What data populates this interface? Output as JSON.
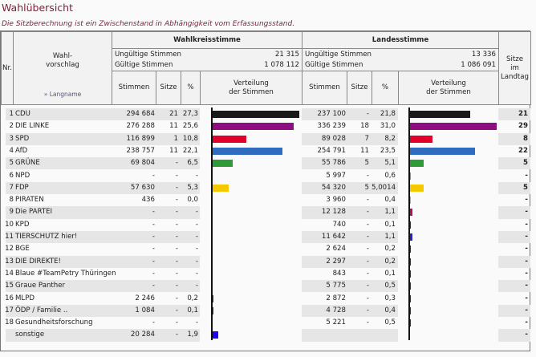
{
  "title": "Wahlübersicht",
  "note": "Die Sitzberechnung ist ein Zwischenstand in Abhängigkeit vom Erfassungsstand.",
  "header": {
    "nr": "Nr.",
    "wahlvorschlag": "Wahl-\nvorschlag",
    "langname_link": "» Langname",
    "wahlkreis": "Wahlkreisstimme",
    "landes": "Landesstimme",
    "sitze_landtag": "Sitze\nim\nLandtag",
    "stimmen": "Stimmen",
    "sitze": "Sitze",
    "pct": "%",
    "verteilung": "Verteilung\nder Stimmen",
    "ungueltig_label": "Ungültige Stimmen",
    "gueltig_label": "Gültige Stimmen",
    "wk_ungueltig": "21 315",
    "wk_gueltig": "1 078 112",
    "ls_ungueltig": "13 336",
    "ls_gueltig": "1 086 091"
  },
  "rows": [
    {
      "nr": "1",
      "name": "CDU",
      "wk_st": "294 684",
      "wk_si": "21",
      "wk_p": "27,3",
      "ls_st": "237 100",
      "ls_si": "-",
      "ls_p": "21,8",
      "lt": "21",
      "color": "#1a1a1a",
      "wk_v": 27.3,
      "ls_v": 21.8
    },
    {
      "nr": "2",
      "name": "DIE LINKE",
      "wk_st": "276 288",
      "wk_si": "11",
      "wk_p": "25,6",
      "ls_st": "336 239",
      "ls_si": "18",
      "ls_p": "31,0",
      "lt": "29",
      "color": "#8e0e82",
      "wk_v": 25.6,
      "ls_v": 31.0
    },
    {
      "nr": "3",
      "name": "SPD",
      "wk_st": "116 899",
      "wk_si": "1",
      "wk_p": "10,8",
      "ls_st": "89 028",
      "ls_si": "7",
      "ls_p": "8,2",
      "lt": "8",
      "color": "#e0002a",
      "wk_v": 10.8,
      "ls_v": 8.2
    },
    {
      "nr": "4",
      "name": "AfD",
      "wk_st": "238 757",
      "wk_si": "11",
      "wk_p": "22,1",
      "ls_st": "254 791",
      "ls_si": "11",
      "ls_p": "23,5",
      "lt": "22",
      "color": "#2f6bbf",
      "wk_v": 22.1,
      "ls_v": 23.5
    },
    {
      "nr": "5",
      "name": "GRÜNE",
      "wk_st": "69 804",
      "wk_si": "-",
      "wk_p": "6,5",
      "ls_st": "55 786",
      "ls_si": "5",
      "ls_p": "5,1",
      "lt": "5",
      "color": "#2e9a3a",
      "wk_v": 6.5,
      "ls_v": 5.1
    },
    {
      "nr": "6",
      "name": "NPD",
      "wk_st": "-",
      "wk_si": "-",
      "wk_p": "-",
      "ls_st": "5 997",
      "ls_si": "-",
      "ls_p": "0,6",
      "lt": "-",
      "color": "#8a8a9a",
      "wk_v": 0,
      "ls_v": 0.6
    },
    {
      "nr": "7",
      "name": "FDP",
      "wk_st": "57 630",
      "wk_si": "-",
      "wk_p": "5,3",
      "ls_st": "54 320",
      "ls_si": "5",
      "ls_p": "5,0014",
      "lt": "5",
      "color": "#f5c800",
      "wk_v": 5.3,
      "ls_v": 5.0
    },
    {
      "nr": "8",
      "name": "PIRATEN",
      "wk_st": "436",
      "wk_si": "-",
      "wk_p": "0,0",
      "ls_st": "3 960",
      "ls_si": "-",
      "ls_p": "0,4",
      "lt": "-",
      "color": "#f5a000",
      "wk_v": 0,
      "ls_v": 0.4
    },
    {
      "nr": "9",
      "name": "Die PARTEI",
      "wk_st": "-",
      "wk_si": "-",
      "wk_p": "-",
      "ls_st": "12 128",
      "ls_si": "-",
      "ls_p": "1,1",
      "lt": "-",
      "color": "#b0105a",
      "wk_v": 0,
      "ls_v": 1.1
    },
    {
      "nr": "10",
      "name": "KPD",
      "wk_st": "-",
      "wk_si": "-",
      "wk_p": "-",
      "ls_st": "740",
      "ls_si": "-",
      "ls_p": "0,1",
      "lt": "-",
      "color": "#2a1fb0",
      "wk_v": 0,
      "ls_v": 0.1
    },
    {
      "nr": "11",
      "name": "TIERSCHUTZ hier!",
      "wk_st": "-",
      "wk_si": "-",
      "wk_p": "-",
      "ls_st": "11 642",
      "ls_si": "-",
      "ls_p": "1,1",
      "lt": "-",
      "color": "#2a1fd0",
      "wk_v": 0,
      "ls_v": 1.1
    },
    {
      "nr": "12",
      "name": "BGE",
      "wk_st": "-",
      "wk_si": "-",
      "wk_p": "-",
      "ls_st": "2 624",
      "ls_si": "-",
      "ls_p": "0,2",
      "lt": "-",
      "color": "#2a1fb0",
      "wk_v": 0,
      "ls_v": 0.2
    },
    {
      "nr": "13",
      "name": "DIE DIREKTE!",
      "wk_st": "-",
      "wk_si": "-",
      "wk_p": "-",
      "ls_st": "2 297",
      "ls_si": "-",
      "ls_p": "0,2",
      "lt": "-",
      "color": "#2a1fb0",
      "wk_v": 0,
      "ls_v": 0.2
    },
    {
      "nr": "14",
      "name": "Blaue #TeamPetry Thüringen",
      "wk_st": "-",
      "wk_si": "-",
      "wk_p": "-",
      "ls_st": "843",
      "ls_si": "-",
      "ls_p": "0,1",
      "lt": "-",
      "color": "#2a1fb0",
      "wk_v": 0,
      "ls_v": 0.1
    },
    {
      "nr": "15",
      "name": "Graue Panther",
      "wk_st": "-",
      "wk_si": "-",
      "wk_p": "-",
      "ls_st": "5 775",
      "ls_si": "-",
      "ls_p": "0,5",
      "lt": "-",
      "color": "#2a1fd0",
      "wk_v": 0,
      "ls_v": 0.5
    },
    {
      "nr": "16",
      "name": "MLPD",
      "wk_st": "2 246",
      "wk_si": "-",
      "wk_p": "0,2",
      "ls_st": "2 872",
      "ls_si": "-",
      "ls_p": "0,3",
      "lt": "-",
      "color": "#2a1fb0",
      "wk_v": 0.2,
      "ls_v": 0.3
    },
    {
      "nr": "17",
      "name": "ÖDP / Familie ..",
      "wk_st": "1 084",
      "wk_si": "-",
      "wk_p": "0,1",
      "ls_st": "4 728",
      "ls_si": "-",
      "ls_p": "0,4",
      "lt": "-",
      "color": "#2a1fd0",
      "wk_v": 0.1,
      "ls_v": 0.4
    },
    {
      "nr": "18",
      "name": "Gesundheitsforschung",
      "wk_st": "-",
      "wk_si": "-",
      "wk_p": "-",
      "ls_st": "5 221",
      "ls_si": "-",
      "ls_p": "0,5",
      "lt": "-",
      "color": "#2a1fd0",
      "wk_v": 0,
      "ls_v": 0.5
    },
    {
      "nr": "",
      "name": "sonstige",
      "wk_st": "20 284",
      "wk_si": "-",
      "wk_p": "1,9",
      "ls_st": "",
      "ls_si": "",
      "ls_p": "",
      "lt": "-",
      "color": "#2200ff",
      "wk_v": 1.9,
      "ls_v": 0
    }
  ]
}
